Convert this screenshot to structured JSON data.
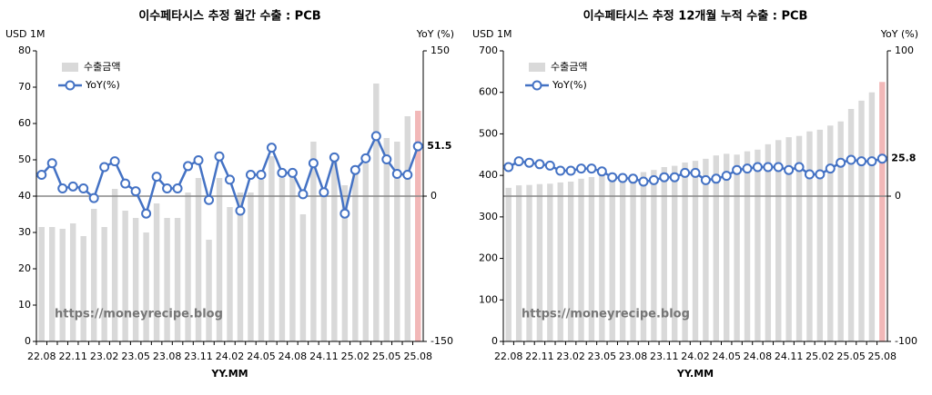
{
  "chart_data": [
    {
      "type": "bar_line",
      "title": "이수페타시스 추정 월간 수출 : PCB",
      "y_label": "USD 1M",
      "y2_label": "YoY (%)",
      "x_label": "YY.MM",
      "watermark": "https://moneyrecipe.blog",
      "categories": [
        "22.08",
        null,
        null,
        "22.11",
        null,
        null,
        "23.02",
        null,
        null,
        "23.05",
        null,
        null,
        "23.08",
        null,
        null,
        "23.11",
        null,
        null,
        "24.02",
        null,
        null,
        "24.05",
        null,
        null,
        "24.08",
        null,
        null,
        "24.11",
        null,
        null,
        "25.02",
        null,
        null,
        "25.05",
        null,
        null,
        "25.08"
      ],
      "series": [
        {
          "name": "수출금액",
          "color": "#d9d9d9",
          "highlight_color": "#f2b8b8",
          "values": [
            31.5,
            31.5,
            31,
            32.5,
            29,
            36.5,
            31.5,
            42,
            36,
            34,
            30,
            38,
            34,
            34,
            41,
            45,
            28,
            45,
            37,
            41,
            41,
            44.5,
            51,
            45,
            46,
            35,
            55,
            41,
            50,
            43,
            48,
            49,
            71,
            56,
            55,
            62,
            63.5
          ]
        },
        {
          "name": "YoY(%)",
          "color": "#4472c4",
          "axis": "y2",
          "label_color": "#e03030",
          "values": [
            22,
            34,
            8,
            10,
            8,
            -2,
            30,
            36,
            13,
            5,
            -18,
            20,
            8,
            8,
            31,
            37,
            -4,
            41,
            17,
            -15,
            22,
            22,
            50,
            24,
            24,
            2,
            34,
            4,
            40,
            -18,
            27,
            39,
            62,
            38,
            23,
            22,
            51.5
          ]
        }
      ],
      "ylim": [
        0,
        80
      ],
      "yticks": [
        0,
        10,
        20,
        30,
        40,
        50,
        60,
        70,
        80
      ],
      "y2lim": [
        -150,
        150
      ],
      "y2ticks": [
        -150,
        0,
        150
      ]
    },
    {
      "type": "bar_line",
      "title": "이수페타시스 추정 12개월 누적 수출 : PCB",
      "y_label": "USD 1M",
      "y2_label": "YoY (%)",
      "x_label": "YY.MM",
      "watermark": "https://moneyrecipe.blog",
      "categories": [
        "22.08",
        null,
        null,
        "22.11",
        null,
        null,
        "23.02",
        null,
        null,
        "23.05",
        null,
        null,
        "23.08",
        null,
        null,
        "23.11",
        null,
        null,
        "24.02",
        null,
        null,
        "24.05",
        null,
        null,
        "24.08",
        null,
        null,
        "24.11",
        null,
        null,
        "25.02",
        null,
        null,
        "25.05",
        null,
        null,
        "25.08"
      ],
      "series": [
        {
          "name": "수출금액",
          "color": "#d9d9d9",
          "highlight_color": "#f2b8b8",
          "values": [
            370,
            376,
            377,
            379,
            380,
            383,
            385,
            392,
            396,
            399,
            398,
            404,
            403,
            408,
            413,
            420,
            423,
            431,
            435,
            440,
            448,
            452,
            450,
            458,
            462,
            475,
            485,
            492,
            495,
            506,
            510,
            520,
            530,
            560,
            580,
            600,
            625
          ]
        },
        {
          "name": "YoY(%)",
          "color": "#4472c4",
          "axis": "y2",
          "label_color": "#e03030",
          "values": [
            20,
            24,
            23,
            22,
            21,
            17.5,
            17.5,
            19,
            19,
            17,
            13,
            12.5,
            12,
            10,
            11,
            13,
            13,
            16,
            16,
            11,
            12,
            14,
            18,
            19,
            20,
            20,
            20,
            18,
            20,
            15,
            15,
            19,
            23,
            25,
            24,
            24,
            25.8
          ]
        }
      ],
      "ylim": [
        0,
        700
      ],
      "yticks": [
        0,
        100,
        200,
        300,
        400,
        500,
        600,
        700
      ],
      "y2lim": [
        -100,
        100
      ],
      "y2ticks": [
        -100,
        0,
        100
      ]
    }
  ]
}
